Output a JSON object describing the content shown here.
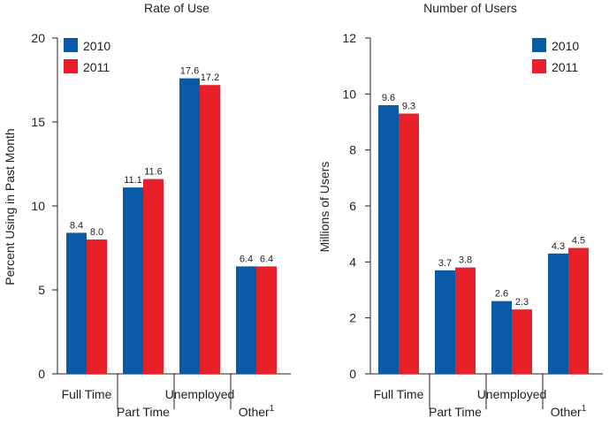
{
  "chart_data": [
    {
      "type": "bar",
      "title": "Rate of Use",
      "ylabel": "Percent Using in Past Month",
      "xlabel": "",
      "ylim": [
        0,
        20
      ],
      "yticks": [
        "0",
        "5",
        "10",
        "15",
        "20"
      ],
      "yticks_values": [
        0,
        5,
        10,
        15,
        20
      ],
      "categories": [
        {
          "label": "Full Time",
          "sup": ""
        },
        {
          "label": "Part Time",
          "sup": ""
        },
        {
          "label": "Unemployed",
          "sup": ""
        },
        {
          "label": "Other",
          "sup": "1"
        }
      ],
      "series": [
        {
          "name": "2010",
          "color": "#0a5aa8",
          "values": [
            8.4,
            11.1,
            17.6,
            6.4
          ],
          "labels": [
            "8.4",
            "11.1",
            "17.6",
            "6.4"
          ]
        },
        {
          "name": "2011",
          "color": "#e8202a",
          "values": [
            8.0,
            11.6,
            17.2,
            6.4
          ],
          "labels": [
            "8.0",
            "11.6",
            "17.2",
            "6.4"
          ]
        }
      ],
      "legend_position": "top-left"
    },
    {
      "type": "bar",
      "title": "Number of Users",
      "ylabel": "Millions of Users",
      "xlabel": "",
      "ylim": [
        0,
        12
      ],
      "yticks": [
        "0",
        "2",
        "4",
        "6",
        "8",
        "10",
        "12"
      ],
      "yticks_values": [
        0,
        2,
        4,
        6,
        8,
        10,
        12
      ],
      "categories": [
        {
          "label": "Full Time",
          "sup": ""
        },
        {
          "label": "Part Time",
          "sup": ""
        },
        {
          "label": "Unemployed",
          "sup": ""
        },
        {
          "label": "Other",
          "sup": "1"
        }
      ],
      "series": [
        {
          "name": "2010",
          "color": "#0a5aa8",
          "values": [
            9.6,
            3.7,
            2.6,
            4.3
          ],
          "labels": [
            "9.6",
            "3.7",
            "2.6",
            "4.3"
          ]
        },
        {
          "name": "2011",
          "color": "#e8202a",
          "values": [
            9.3,
            3.8,
            2.3,
            4.5
          ],
          "labels": [
            "9.3",
            "3.8",
            "2.3",
            "4.5"
          ]
        }
      ],
      "legend_position": "top-right"
    }
  ]
}
